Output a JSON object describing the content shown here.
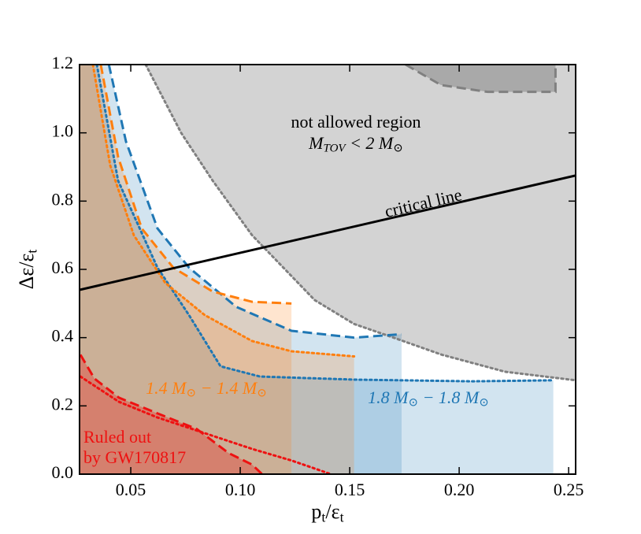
{
  "chart_data": {
    "type": "line",
    "xlim": [
      0.0266,
      0.2532
    ],
    "ylim": [
      0,
      1.2
    ],
    "xticks": [
      0.05,
      {
        "value": 0.1,
        "label": "0.10"
      },
      0.15,
      {
        "value": 0.2,
        "label": "0.20"
      },
      0.25
    ],
    "yticks": [
      {
        "value": 0,
        "label": "0.0"
      },
      0.2,
      0.4,
      0.6,
      0.8,
      {
        "value": 1,
        "label": "1.0"
      },
      1.2
    ],
    "x_label": [
      {
        "text": "p"
      },
      {
        "text": "t",
        "sub": true
      },
      {
        "text": "/ε"
      },
      {
        "text": "t",
        "sub": true
      }
    ],
    "y_label": [
      {
        "text": "Δε/ε"
      },
      {
        "text": "t",
        "sub": true
      }
    ],
    "annotations": {
      "region": [
        {
          "text": "not allowed region"
        }
      ],
      "mtov": [
        {
          "text": "M"
        },
        {
          "text": "TOV",
          "sub": true
        },
        {
          "text": " < 2 M"
        },
        {
          "text": "⊙",
          "sub": true
        }
      ],
      "critical": [
        {
          "text": "critical line"
        }
      ],
      "orange": [
        {
          "text": "1.4 M"
        },
        {
          "text": "⊙",
          "sub": true
        },
        {
          "text": " − 1.4 M"
        },
        {
          "text": "⊙",
          "sub": true
        }
      ],
      "blue": [
        {
          "text": "1.8 M"
        },
        {
          "text": "⊙",
          "sub": true
        },
        {
          "text": " − 1.8 M"
        },
        {
          "text": "⊙",
          "sub": true
        }
      ],
      "ruled1": [
        {
          "text": "Ruled out"
        }
      ],
      "ruled2": [
        {
          "text": "by GW170817"
        }
      ]
    },
    "series": [
      {
        "color": "#808080",
        "dash": "dotted",
        "fill": "above",
        "fill_color": "#d3d3d3",
        "fill_opacity": 1,
        "x": [
          0.0568,
          0.073,
          0.0874,
          0.1054,
          0.134,
          0.152,
          0.17,
          0.192,
          0.221,
          0.2532
        ],
        "values": [
          1.2,
          1.0,
          0.86,
          0.7,
          0.51,
          0.44,
          0.4,
          0.35,
          0.3,
          0.275
        ]
      },
      {
        "color": "#808080",
        "dash": "dashed",
        "fill": "closed",
        "fill_color": "#a9a9a9",
        "fill_opacity": 1,
        "x": [
          0.1755,
          0.1917,
          0.213,
          0.244,
          0.244
        ],
        "values": [
          1.2,
          1.14,
          1.12,
          1.12,
          1.2
        ]
      },
      {
        "color": "#1f77b4",
        "dash": "dotted",
        "fill": "below",
        "fill_color": "#1f77b4",
        "fill_opacity": 0.2,
        "x": [
          0.0345,
          0.0442,
          0.0622,
          0.0766,
          0.091,
          0.109,
          0.152,
          0.206,
          0.243
        ],
        "values": [
          1.2,
          0.86,
          0.605,
          0.466,
          0.316,
          0.286,
          0.277,
          0.272,
          0.275
        ]
      },
      {
        "color": "#1f77b4",
        "dash": "dashed",
        "fill": "below",
        "fill_color": "#1f77b4",
        "fill_opacity": 0.2,
        "x": [
          0.04,
          0.0478,
          0.0622,
          0.0766,
          0.0982,
          0.1234,
          0.152,
          0.1737
        ],
        "values": [
          1.2,
          0.975,
          0.72,
          0.605,
          0.49,
          0.42,
          0.4,
          0.41
        ]
      },
      {
        "color": "#ff7f0e",
        "dash": "dotted",
        "fill": "below",
        "fill_color": "#ff7f0e",
        "fill_opacity": 0.2,
        "x": [
          0.0327,
          0.0406,
          0.0514,
          0.0658,
          0.0838,
          0.1054,
          0.1234,
          0.152
        ],
        "values": [
          1.2,
          0.905,
          0.7,
          0.56,
          0.466,
          0.39,
          0.36,
          0.345
        ]
      },
      {
        "color": "#ff7f0e",
        "dash": "dashed",
        "fill": "below",
        "fill_color": "#ff7f0e",
        "fill_opacity": 0.2,
        "x": [
          0.0363,
          0.0442,
          0.055,
          0.0694,
          0.0874,
          0.1054,
          0.1234
        ],
        "values": [
          1.2,
          0.93,
          0.72,
          0.605,
          0.535,
          0.505,
          0.5
        ]
      },
      {
        "color": "#ee1111",
        "dash": "dashed",
        "fill": "below",
        "fill_color": "#ee1111",
        "fill_opacity": 0.3,
        "x": [
          0.027,
          0.0334,
          0.0446,
          0.0622,
          0.0802,
          0.0946,
          0.1054,
          0.11
        ],
        "values": [
          0.35,
          0.28,
          0.224,
          0.178,
          0.132,
          0.062,
          0.028,
          0
        ]
      },
      {
        "color": "#ee1111",
        "dash": "dotted",
        "x": [
          0.027,
          0.0446,
          0.0622,
          0.0838,
          0.1054,
          0.1234,
          0.1414
        ],
        "values": [
          0.286,
          0.212,
          0.166,
          0.12,
          0.074,
          0.04,
          0
        ]
      },
      {
        "color": "#000000",
        "dash": "solid",
        "x": [
          0.0266,
          0.2532
        ],
        "values": [
          0.54,
          0.875
        ]
      }
    ]
  }
}
